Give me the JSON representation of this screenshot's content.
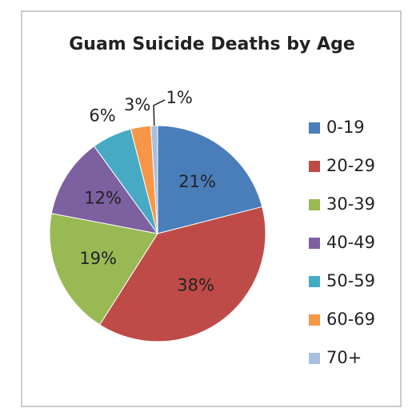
{
  "chart_data": {
    "type": "pie",
    "title": "Guam Suicide Deaths by Age",
    "categories": [
      "0-19",
      "20-29",
      "30-39",
      "40-49",
      "50-59",
      "60-69",
      "70+"
    ],
    "values": [
      21,
      38,
      19,
      12,
      6,
      3,
      1
    ],
    "value_labels": [
      "21%",
      "38%",
      "19%",
      "12%",
      "6%",
      "3%",
      "1%"
    ],
    "colors": [
      "#4a7ebb",
      "#be4b48",
      "#98b954",
      "#7d60a0",
      "#46aac5",
      "#f79646",
      "#a7bfde"
    ],
    "legend": "right"
  }
}
